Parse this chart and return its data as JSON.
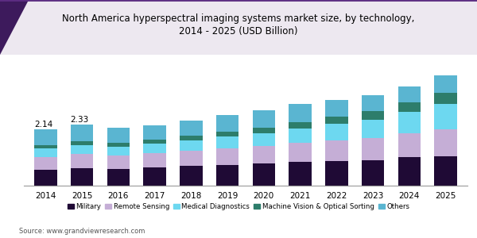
{
  "title": "North America hyperspectral imaging systems market size, by technology,\n2014 - 2025 (USD Billion)",
  "years": [
    2014,
    2015,
    2016,
    2017,
    2018,
    2019,
    2020,
    2021,
    2022,
    2023,
    2024,
    2025
  ],
  "categories": [
    "Military",
    "Remote Sensing",
    "Medical Diagnostics",
    "Machine Vision & Optical Sorting",
    "Others"
  ],
  "colors": [
    "#1f0a35",
    "#c5aed6",
    "#6dd8f0",
    "#2d7d6b",
    "#5ab5d1"
  ],
  "data": {
    "Military": [
      0.62,
      0.68,
      0.65,
      0.7,
      0.75,
      0.8,
      0.85,
      0.9,
      0.95,
      0.98,
      1.08,
      1.13
    ],
    "Remote Sensing": [
      0.47,
      0.52,
      0.5,
      0.54,
      0.57,
      0.62,
      0.67,
      0.73,
      0.78,
      0.85,
      0.93,
      1.03
    ],
    "Medical Diagnostics": [
      0.32,
      0.36,
      0.34,
      0.37,
      0.4,
      0.45,
      0.48,
      0.54,
      0.62,
      0.7,
      0.8,
      0.95
    ],
    "Machine Vision & Optical Sorting": [
      0.13,
      0.15,
      0.14,
      0.16,
      0.18,
      0.2,
      0.22,
      0.25,
      0.28,
      0.32,
      0.37,
      0.44
    ],
    "Others": [
      0.6,
      0.62,
      0.57,
      0.53,
      0.57,
      0.63,
      0.66,
      0.71,
      0.65,
      0.6,
      0.62,
      0.65
    ]
  },
  "annotations": {
    "2014": "2.14",
    "2015": "2.33"
  },
  "source": "Source: www.grandviewresearch.com",
  "ylim": [
    0,
    5.0
  ],
  "bar_width": 0.62,
  "figsize": [
    6.0,
    3.0
  ],
  "dpi": 100,
  "title_fontsize": 8.5,
  "legend_fontsize": 6.2,
  "tick_fontsize": 7.5,
  "annotation_fontsize": 7.5,
  "source_fontsize": 6,
  "background_color": "#ffffff",
  "title_bg_color": "#ede8f0",
  "title_line_color": "#5c2d82"
}
